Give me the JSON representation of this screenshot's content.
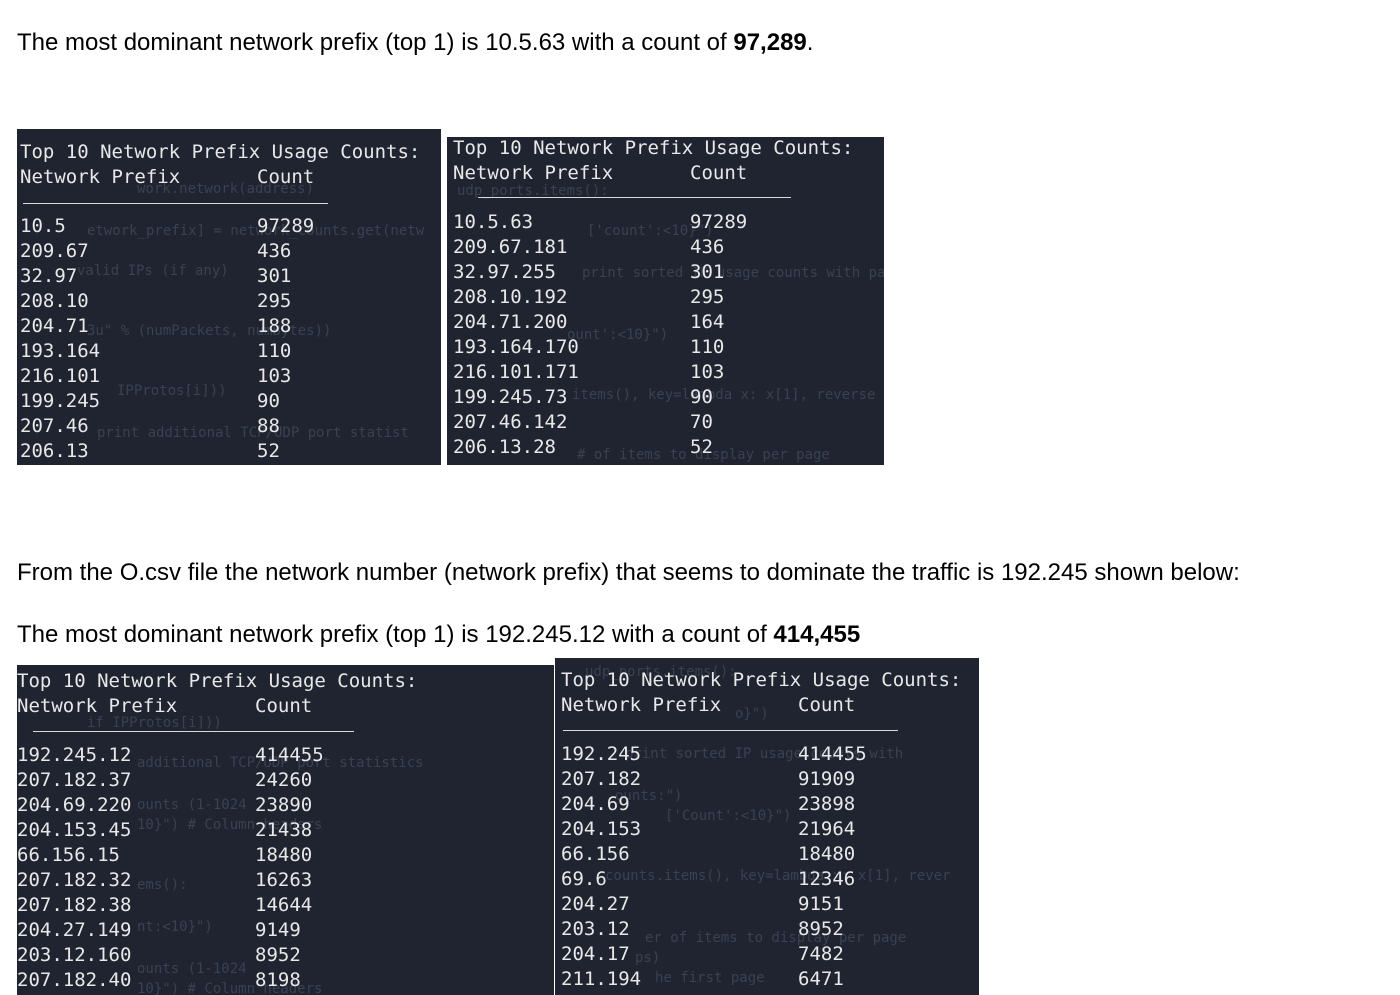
{
  "paragraph1": {
    "text": "The most dominant network prefix (top 1) is 10.5.63 with a count of ",
    "bold": "97,289",
    "tail": "."
  },
  "paragraph2": {
    "text": "From the O.csv file the network number (network prefix) that seems to dominate the traffic is 192.245 shown below:"
  },
  "paragraph3": {
    "text": "The most dominant network prefix (top 1) is 192.245.12 with a count of ",
    "bold": "414,455"
  },
  "terminals": [
    {
      "title": "Top 10 Network Prefix Usage Counts:",
      "col_prefix": "Network Prefix",
      "col_count": "Count",
      "rows": [
        {
          "prefix": "10.5",
          "count": "97289"
        },
        {
          "prefix": "209.67",
          "count": "436"
        },
        {
          "prefix": "32.97",
          "count": "301"
        },
        {
          "prefix": "208.10",
          "count": "295"
        },
        {
          "prefix": "204.71",
          "count": "188"
        },
        {
          "prefix": "193.164",
          "count": "110"
        },
        {
          "prefix": "216.101",
          "count": "103"
        },
        {
          "prefix": "199.245",
          "count": "90"
        },
        {
          "prefix": "207.46",
          "count": "88"
        },
        {
          "prefix": "206.13",
          "count": "52"
        }
      ]
    },
    {
      "title": "Top 10 Network Prefix Usage Counts:",
      "col_prefix": "Network Prefix",
      "col_count": "Count",
      "rows": [
        {
          "prefix": "10.5.63",
          "count": "97289"
        },
        {
          "prefix": "209.67.181",
          "count": "436"
        },
        {
          "prefix": "32.97.255",
          "count": "301"
        },
        {
          "prefix": "208.10.192",
          "count": "295"
        },
        {
          "prefix": "204.71.200",
          "count": "164"
        },
        {
          "prefix": "193.164.170",
          "count": "110"
        },
        {
          "prefix": "216.101.171",
          "count": "103"
        },
        {
          "prefix": "199.245.73",
          "count": "90"
        },
        {
          "prefix": "207.46.142",
          "count": "70"
        },
        {
          "prefix": "206.13.28",
          "count": "52"
        }
      ]
    },
    {
      "title": "Top 10 Network Prefix Usage Counts:",
      "col_prefix": "Network Prefix",
      "col_count": "Count",
      "rows": [
        {
          "prefix": "192.245.12",
          "count": "414455"
        },
        {
          "prefix": "207.182.37",
          "count": "24260"
        },
        {
          "prefix": "204.69.220",
          "count": "23890"
        },
        {
          "prefix": "204.153.45",
          "count": "21438"
        },
        {
          "prefix": "66.156.15",
          "count": "18480"
        },
        {
          "prefix": "207.182.32",
          "count": "16263"
        },
        {
          "prefix": "207.182.38",
          "count": "14644"
        },
        {
          "prefix": "204.27.149",
          "count": "9149"
        },
        {
          "prefix": "203.12.160",
          "count": "8952"
        },
        {
          "prefix": "207.182.40",
          "count": "8198"
        }
      ]
    },
    {
      "title": "Top 10 Network Prefix Usage Counts:",
      "col_prefix": "Network Prefix",
      "col_count": "Count",
      "rows": [
        {
          "prefix": "192.245",
          "count": "414455"
        },
        {
          "prefix": "207.182",
          "count": "91909"
        },
        {
          "prefix": "204.69",
          "count": "23898"
        },
        {
          "prefix": "204.153",
          "count": "21964"
        },
        {
          "prefix": "66.156",
          "count": "18480"
        },
        {
          "prefix": "69.6",
          "count": "12346"
        },
        {
          "prefix": "204.27",
          "count": "9151"
        },
        {
          "prefix": "203.12",
          "count": "8952"
        },
        {
          "prefix": "204.17",
          "count": "7482"
        },
        {
          "prefix": "211.194",
          "count": "6471"
        }
      ]
    }
  ]
}
